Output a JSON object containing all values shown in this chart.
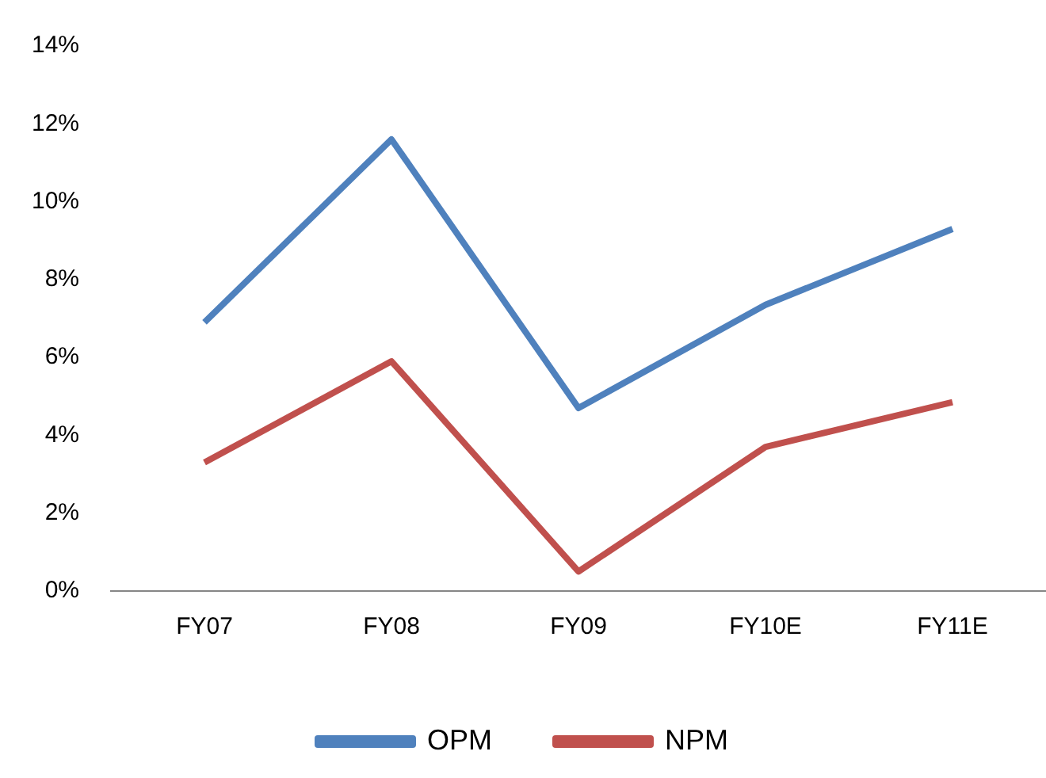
{
  "chart_data": {
    "type": "line",
    "categories": [
      "FY07",
      "FY08",
      "FY09",
      "FY10E",
      "FY11E"
    ],
    "series": [
      {
        "name": "OPM",
        "color": "#4f81bd",
        "values": [
          6.9,
          11.6,
          4.7,
          7.35,
          9.3
        ]
      },
      {
        "name": "NPM",
        "color": "#c0504d",
        "values": [
          3.3,
          5.9,
          0.5,
          3.7,
          4.85
        ]
      }
    ],
    "ylim": [
      0,
      14
    ],
    "yticks": [
      {
        "value": 0,
        "label": "0%"
      },
      {
        "value": 2,
        "label": "2%"
      },
      {
        "value": 4,
        "label": "4%"
      },
      {
        "value": 6,
        "label": "6%"
      },
      {
        "value": 8,
        "label": "8%"
      },
      {
        "value": 10,
        "label": "10%"
      },
      {
        "value": 12,
        "label": "12%"
      },
      {
        "value": 14,
        "label": "14%"
      }
    ],
    "grid": false,
    "legend": "bottom",
    "marker": "none",
    "line_style": "solid"
  }
}
